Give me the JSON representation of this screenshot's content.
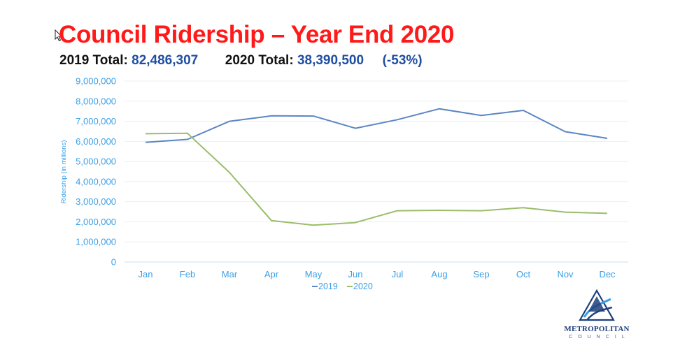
{
  "slide": {
    "title": "Council Ridership – Year End 2020",
    "total_2019_label": "2019 Total:",
    "total_2019_value": "82,486,307",
    "total_2020_label": "2020 Total:",
    "total_2020_value": "38,390,500",
    "change": "(-53%)"
  },
  "logo": {
    "name": "METROPOLITAN",
    "sub": "COUNCIL",
    "icon": "metropolitan-council-logo-icon"
  },
  "colors": {
    "title": "#ff1a1a",
    "totals_value": "#1f4fa3",
    "axis_text": "#3aa0e8",
    "series_2019": "#5b86c4",
    "series_2020": "#9bbd6a"
  },
  "chart_data": {
    "type": "line",
    "categories": [
      "Jan",
      "Feb",
      "Mar",
      "Apr",
      "May",
      "Jun",
      "Jul",
      "Aug",
      "Sep",
      "Oct",
      "Nov",
      "Dec"
    ],
    "series": [
      {
        "name": "2019",
        "values": [
          5950000,
          6100000,
          7000000,
          7270000,
          7260000,
          6650000,
          7080000,
          7620000,
          7290000,
          7540000,
          6480000,
          6150000
        ]
      },
      {
        "name": "2020",
        "values": [
          6380000,
          6400000,
          4450000,
          2060000,
          1830000,
          1960000,
          2550000,
          2570000,
          2550000,
          2700000,
          2480000,
          2420000
        ]
      }
    ],
    "ylabel": "Ridership (in millions)",
    "yticks": [
      "0",
      "1,000,000",
      "2,000,000",
      "3,000,000",
      "4,000,000",
      "5,000,000",
      "6,000,000",
      "7,000,000",
      "8,000,000",
      "9,000,000"
    ],
    "ylim": [
      0,
      9000000
    ],
    "grid": true,
    "legend": "bottom"
  }
}
